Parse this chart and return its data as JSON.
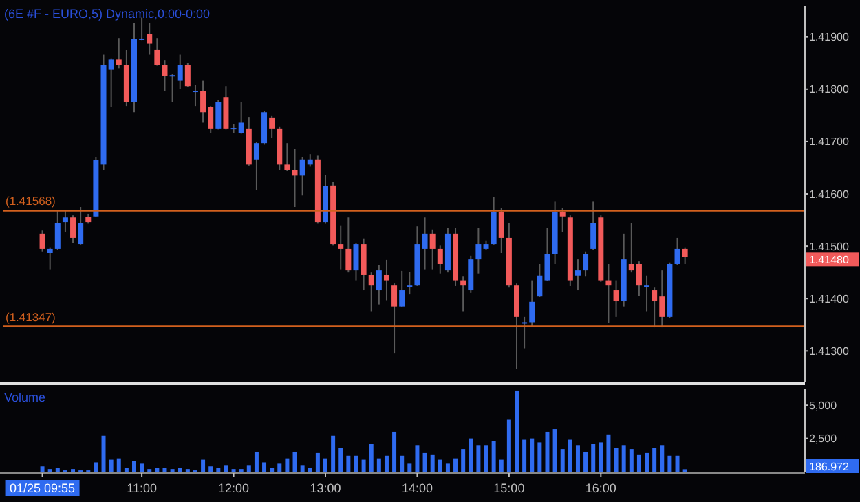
{
  "chart_data": [
    {
      "type": "candlestick",
      "title": "(6E #F - EURO,5) Dynamic,0:00-0:00",
      "categories": [
        null,
        null,
        null,
        null,
        null,
        null,
        null,
        null,
        null,
        null,
        null,
        null,
        null,
        null,
        null,
        null,
        null,
        null,
        null,
        null,
        null,
        null,
        null,
        null,
        null,
        null,
        null,
        null,
        null,
        null,
        null,
        null,
        null,
        null,
        null,
        null,
        null,
        null,
        null,
        null,
        null,
        null,
        null,
        null,
        null,
        null,
        null,
        null,
        null,
        null,
        null,
        null,
        null,
        null,
        null,
        null,
        null,
        null,
        null,
        null,
        null,
        null,
        null,
        null,
        null,
        null,
        null,
        null,
        null,
        null,
        null,
        null,
        null,
        null,
        null,
        null,
        null,
        null,
        null,
        null,
        null,
        null,
        null,
        null,
        null,
        null,
        null,
        null,
        null,
        null,
        null,
        null,
        null,
        null,
        null,
        null,
        null,
        null,
        null,
        null
      ],
      "ohlc": [
        [
          1.41524,
          1.4153,
          1.4149,
          1.41495
        ],
        [
          1.41487,
          1.41498,
          1.41456,
          1.41495
        ],
        [
          1.41495,
          1.41567,
          1.41493,
          1.41544
        ],
        [
          1.41546,
          1.41567,
          1.41527,
          1.41555
        ],
        [
          1.41555,
          1.41559,
          1.41506,
          1.41516
        ],
        [
          1.41504,
          1.41575,
          1.41503,
          1.41544
        ],
        [
          1.41556,
          1.41562,
          1.41543,
          1.41546
        ],
        [
          1.41557,
          1.4167,
          1.41556,
          1.41665
        ],
        [
          1.41656,
          1.41866,
          1.41646,
          1.41847
        ],
        [
          1.41837,
          1.41858,
          1.41766,
          1.41857
        ],
        [
          1.41857,
          1.41898,
          1.4184,
          1.41847
        ],
        [
          1.41847,
          1.41875,
          1.41768,
          1.41776
        ],
        [
          1.41776,
          1.41927,
          1.41756,
          1.41896
        ],
        [
          1.41896,
          1.41937,
          1.41894,
          1.41897
        ],
        [
          1.41906,
          1.41926,
          1.41866,
          1.41887
        ],
        [
          1.41876,
          1.41898,
          1.41845,
          1.41847
        ],
        [
          1.41847,
          1.41856,
          1.41796,
          1.41826
        ],
        [
          1.41826,
          1.41829,
          1.41776,
          1.41827
        ],
        [
          1.41816,
          1.41866,
          1.418,
          1.41847
        ],
        [
          1.41847,
          1.4185,
          1.41805,
          1.41806
        ],
        [
          1.41796,
          1.41808,
          1.41768,
          1.41797
        ],
        [
          1.41797,
          1.41816,
          1.41736,
          1.41756
        ],
        [
          1.41766,
          1.41768,
          1.41716,
          1.41725
        ],
        [
          1.41725,
          1.41779,
          1.41723,
          1.41776
        ],
        [
          1.41785,
          1.41806,
          1.41723,
          1.41725
        ],
        [
          1.41725,
          1.41734,
          1.41716,
          1.41726
        ],
        [
          1.41716,
          1.41776,
          1.41715,
          1.41736
        ],
        [
          1.41725,
          1.41747,
          1.41654,
          1.41656
        ],
        [
          1.41666,
          1.41699,
          1.41607,
          1.41697
        ],
        [
          1.41697,
          1.41758,
          1.41694,
          1.41756
        ],
        [
          1.41746,
          1.4175,
          1.41707,
          1.41725
        ],
        [
          1.41725,
          1.41729,
          1.41646,
          1.41656
        ],
        [
          1.41656,
          1.41697,
          1.41644,
          1.41646
        ],
        [
          1.41646,
          1.41686,
          1.41575,
          1.41635
        ],
        [
          1.41635,
          1.4167,
          1.41597,
          1.41666
        ],
        [
          1.41656,
          1.41676,
          1.41652,
          1.41666
        ],
        [
          1.41666,
          1.41673,
          1.41543,
          1.41546
        ],
        [
          1.41546,
          1.41636,
          1.41543,
          1.41615
        ],
        [
          1.41616,
          1.41623,
          1.41501,
          1.41504
        ],
        [
          1.41504,
          1.4154,
          1.41456,
          1.41495
        ],
        [
          1.41495,
          1.41555,
          1.4145,
          1.41454
        ],
        [
          1.41454,
          1.41506,
          1.41435,
          1.41504
        ],
        [
          1.41504,
          1.41515,
          1.41416,
          1.41445
        ],
        [
          1.41445,
          1.4145,
          1.41376,
          1.41425
        ],
        [
          1.41416,
          1.41464,
          1.41389,
          1.41454
        ],
        [
          1.41445,
          1.41474,
          1.41397,
          1.41435
        ],
        [
          1.41425,
          1.41429,
          1.41295,
          1.41385
        ],
        [
          1.41385,
          1.41453,
          1.41384,
          1.41416
        ],
        [
          1.41424,
          1.41451,
          1.41408,
          1.41425
        ],
        [
          1.41425,
          1.41538,
          1.41424,
          1.41504
        ],
        [
          1.41495,
          1.41555,
          1.41456,
          1.41524
        ],
        [
          1.41524,
          1.41532,
          1.41456,
          1.41495
        ],
        [
          1.41495,
          1.41501,
          1.41448,
          1.41466
        ],
        [
          1.41454,
          1.41535,
          1.4145,
          1.41524
        ],
        [
          1.41524,
          1.41535,
          1.41424,
          1.41435
        ],
        [
          1.41435,
          1.41442,
          1.41376,
          1.41425
        ],
        [
          1.41416,
          1.41482,
          1.41411,
          1.41475
        ],
        [
          1.41475,
          1.41535,
          1.41448,
          1.41504
        ],
        [
          1.41495,
          1.41511,
          1.41493,
          1.41504
        ],
        [
          1.41504,
          1.41594,
          1.41503,
          1.41566
        ],
        [
          1.41566,
          1.41573,
          1.41487,
          1.41516
        ],
        [
          1.41516,
          1.41544,
          1.41421,
          1.41425
        ],
        [
          1.41425,
          1.41429,
          1.41266,
          1.41365
        ],
        [
          1.41354,
          1.41365,
          1.41305,
          1.41355
        ],
        [
          1.41355,
          1.41435,
          1.41347,
          1.41394
        ],
        [
          1.41404,
          1.41466,
          1.41403,
          1.41444
        ],
        [
          1.41435,
          1.41535,
          1.41434,
          1.41485
        ],
        [
          1.41485,
          1.41585,
          1.41466,
          1.41566
        ],
        [
          1.41566,
          1.41573,
          1.41527,
          1.41557
        ],
        [
          1.41555,
          1.41559,
          1.41424,
          1.41435
        ],
        [
          1.41444,
          1.41475,
          1.41416,
          1.41454
        ],
        [
          1.41454,
          1.4149,
          1.41442,
          1.41485
        ],
        [
          1.41495,
          1.41585,
          1.41493,
          1.41544
        ],
        [
          1.41555,
          1.41559,
          1.41432,
          1.41435
        ],
        [
          1.41435,
          1.41466,
          1.41354,
          1.41425
        ],
        [
          1.41416,
          1.41435,
          1.41365,
          1.41395
        ],
        [
          1.41395,
          1.41524,
          1.41385,
          1.41475
        ],
        [
          1.41466,
          1.41544,
          1.4145,
          1.41454
        ],
        [
          1.41466,
          1.41471,
          1.41405,
          1.41425
        ],
        [
          1.41424,
          1.41444,
          1.41376,
          1.41425
        ],
        [
          1.41416,
          1.41421,
          1.41345,
          1.41395
        ],
        [
          1.41404,
          1.41454,
          1.41345,
          1.41365
        ],
        [
          1.41365,
          1.41469,
          1.41363,
          1.41466
        ],
        [
          1.41466,
          1.41516,
          1.41464,
          1.41495
        ],
        [
          1.41495,
          1.41498,
          1.41466,
          1.4148
        ],
        null,
        null,
        null,
        null,
        null,
        null,
        null,
        null,
        null,
        null,
        null,
        null,
        null,
        null,
        null
      ],
      "colors": [
        "#f25a5a",
        "#2f6bf0",
        "#2f6bf0",
        "#2f6bf0",
        "#f25a5a",
        "#2f6bf0",
        "#f25a5a",
        "#2f6bf0",
        "#2f6bf0",
        "#2f6bf0",
        "#f25a5a",
        "#f25a5a",
        "#2f6bf0",
        "#2f6bf0",
        "#f25a5a",
        "#f25a5a",
        "#f25a5a",
        "#2f6bf0",
        "#2f6bf0",
        "#f25a5a",
        "#2f6bf0",
        "#f25a5a",
        "#f25a5a",
        "#2f6bf0",
        "#f25a5a",
        "#2f6bf0",
        "#2f6bf0",
        "#f25a5a",
        "#2f6bf0",
        "#2f6bf0",
        "#f25a5a",
        "#f25a5a",
        "#f25a5a",
        "#f25a5a",
        "#2f6bf0",
        "#2f6bf0",
        "#f25a5a",
        "#2f6bf0",
        "#f25a5a",
        "#f25a5a",
        "#f25a5a",
        "#2f6bf0",
        "#f25a5a",
        "#f25a5a",
        "#2f6bf0",
        "#f25a5a",
        "#f25a5a",
        "#2f6bf0",
        "#2f6bf0",
        "#2f6bf0",
        "#2f6bf0",
        "#f25a5a",
        "#f25a5a",
        "#2f6bf0",
        "#f25a5a",
        "#f25a5a",
        "#2f6bf0",
        "#2f6bf0",
        "#2f6bf0",
        "#2f6bf0",
        "#f25a5a",
        "#f25a5a",
        "#f25a5a",
        "#2f6bf0",
        "#2f6bf0",
        "#2f6bf0",
        "#2f6bf0",
        "#2f6bf0",
        "#f25a5a",
        "#f25a5a",
        "#2f6bf0",
        "#2f6bf0",
        "#2f6bf0",
        "#f25a5a",
        "#f25a5a",
        "#f25a5a",
        "#2f6bf0",
        "#f25a5a",
        "#f25a5a",
        "#2f6bf0",
        "#f25a5a",
        "#f25a5a",
        "#2f6bf0",
        "#2f6bf0",
        "#f25a5a",
        null,
        null,
        null,
        null,
        null,
        null,
        null,
        null,
        null,
        null,
        null,
        null,
        null,
        null,
        null
      ],
      "ylim": [
        1.4124,
        1.4196
      ],
      "yticks": [
        {
          "value": 1.413,
          "label": "1.41300"
        },
        {
          "value": 1.414,
          "label": "1.41400"
        },
        {
          "value": 1.415,
          "label": "1.41500"
        },
        {
          "value": 1.416,
          "label": "1.41600"
        },
        {
          "value": 1.417,
          "label": "1.41700"
        },
        {
          "value": 1.418,
          "label": "1.41800"
        },
        {
          "value": 1.419,
          "label": "1.41900"
        }
      ],
      "ref_lines": [
        {
          "axis": "y",
          "value": 1.41568,
          "label": "(1.41568)",
          "color": "#d2601e"
        },
        {
          "axis": "y",
          "value": 1.41347,
          "label": "(1.41347)",
          "color": "#d2601e"
        }
      ],
      "annotations": [
        "1.41480"
      ],
      "tick_labels": "y"
    },
    {
      "type": "bar",
      "title": "Volume",
      "categories": [
        "01/25 09:55",
        null,
        null,
        null,
        null,
        null,
        null,
        null,
        null,
        null,
        null,
        null,
        null,
        "11:00",
        null,
        null,
        null,
        null,
        null,
        null,
        null,
        null,
        null,
        null,
        null,
        "12:00",
        null,
        null,
        null,
        null,
        null,
        null,
        null,
        null,
        null,
        null,
        null,
        "13:00",
        null,
        null,
        null,
        null,
        null,
        null,
        null,
        null,
        null,
        null,
        null,
        "14:00",
        null,
        null,
        null,
        null,
        null,
        null,
        null,
        null,
        null,
        null,
        null,
        "15:00",
        null,
        null,
        null,
        null,
        null,
        null,
        null,
        null,
        null,
        null,
        null,
        "16:00",
        null,
        null,
        null,
        null,
        null,
        null,
        null,
        null,
        null,
        null,
        null,
        null,
        null,
        null,
        null,
        null,
        null,
        null,
        null,
        null,
        null,
        null,
        null,
        null,
        null,
        null
      ],
      "values": [
        400,
        200,
        300,
        100,
        200,
        100,
        100,
        700,
        2700,
        900,
        1000,
        300,
        800,
        600,
        200,
        300,
        300,
        200,
        300,
        200,
        100,
        900,
        400,
        300,
        500,
        200,
        200,
        500,
        1500,
        700,
        300,
        600,
        1000,
        1500,
        500,
        300,
        1400,
        1000,
        2700,
        1800,
        1200,
        1200,
        900,
        2100,
        1000,
        1200,
        3000,
        1200,
        600,
        2000,
        1400,
        1300,
        900,
        600,
        1000,
        1700,
        2500,
        2000,
        2000,
        2300,
        900,
        3900,
        6100,
        2400,
        2500,
        2200,
        3000,
        3200,
        1700,
        2400,
        2000,
        1500,
        2100,
        2200,
        2800,
        1800,
        2000,
        1700,
        1300,
        1400,
        1800,
        2000,
        1200,
        1200,
        186.972,
        null,
        null,
        null,
        null,
        null,
        null,
        null,
        null,
        null,
        null,
        null,
        null,
        null,
        null,
        null
      ],
      "color": "#2f6bf0",
      "ylim": [
        0,
        6200
      ],
      "yticks": [
        {
          "value": 2500,
          "label": "2,500"
        },
        {
          "value": 5000,
          "label": "5,000"
        }
      ],
      "annotations": [
        "186.972"
      ]
    }
  ]
}
